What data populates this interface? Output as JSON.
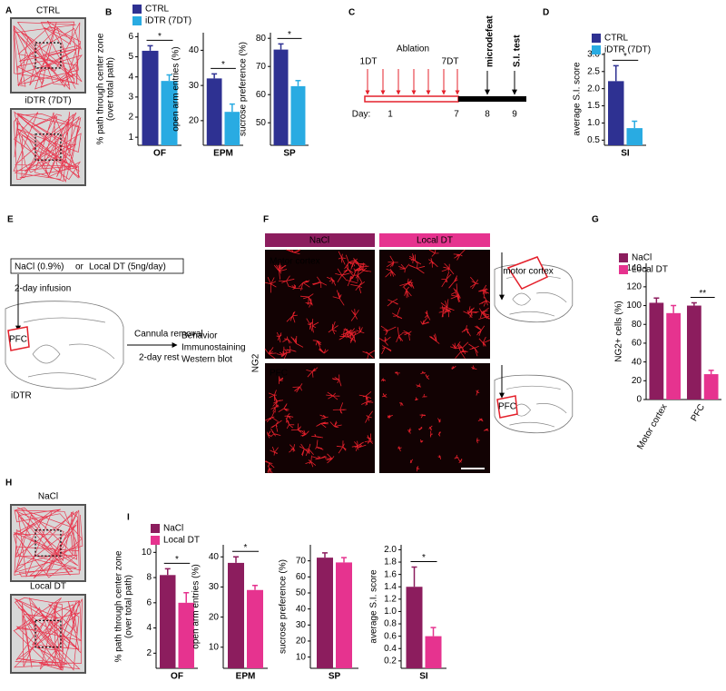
{
  "panel_letters": [
    "A",
    "B",
    "C",
    "D",
    "E",
    "F",
    "G",
    "H",
    "I"
  ],
  "panel_A": {
    "labels": [
      "CTRL",
      "iDTR (7DT)"
    ]
  },
  "panel_C": {
    "ablation": "Ablation",
    "start": "1DT",
    "end": "7DT",
    "microdefeat": "microdefeat",
    "si_test": "S.I. test",
    "day_label": "Day:",
    "days": [
      "1",
      "7",
      "8",
      "9"
    ]
  },
  "panel_E": {
    "nacl": "NaCl (0.9%)",
    "or": "or",
    "local_dt": "Local DT (5ng/day)",
    "infusion": "2-day infusion",
    "region": "PFC",
    "removal": "Cannula removal",
    "rest": "2-day rest",
    "outcomes": [
      "Behavior",
      "Immunostaining",
      "Western blot"
    ],
    "mouse": "iDTR"
  },
  "panel_F": {
    "columns": [
      "NaCl",
      "Local DT"
    ],
    "rows": [
      "Motor cortex",
      "PFC"
    ],
    "stain": "NG2",
    "atlas_labels": [
      "motor cortex",
      "PFC"
    ]
  },
  "panel_H": {
    "labels": [
      "NaCl",
      "Local DT"
    ]
  },
  "chart_data": [
    {
      "type": "bar",
      "y_label": [
        "% path through center zone",
        "(over total path)"
      ],
      "categories": [
        "OF"
      ],
      "series": [
        {
          "name": "CTRL",
          "color": "#2e3192",
          "values": [
            5.3
          ],
          "errors": [
            0.25
          ]
        },
        {
          "name": "iDTR (7DT)",
          "color": "#29abe2",
          "values": [
            3.8
          ],
          "errors": [
            0.3
          ]
        }
      ],
      "ylim": [
        0.6,
        6.2
      ],
      "yticks": [
        1,
        2,
        3,
        4,
        5,
        6
      ],
      "significance": [
        "*"
      ]
    },
    {
      "type": "bar",
      "y_label": [
        "open arm entries (%)"
      ],
      "categories": [
        "EPM"
      ],
      "series": [
        {
          "color": "#2e3192",
          "values": [
            32
          ],
          "errors": [
            1.3
          ]
        },
        {
          "color": "#29abe2",
          "values": [
            22.5
          ],
          "errors": [
            2.2
          ]
        }
      ],
      "ylim": [
        13,
        45
      ],
      "yticks": [
        20,
        30,
        40
      ],
      "significance": [
        "*"
      ]
    },
    {
      "type": "bar",
      "y_label": [
        "sucrose preference (%)"
      ],
      "categories": [
        "SP"
      ],
      "series": [
        {
          "color": "#2e3192",
          "values": [
            76
          ],
          "errors": [
            2
          ]
        },
        {
          "color": "#29abe2",
          "values": [
            63
          ],
          "errors": [
            2
          ]
        }
      ],
      "ylim": [
        42,
        82
      ],
      "yticks": [
        50,
        60,
        70,
        80
      ],
      "significance": [
        "*"
      ]
    },
    {
      "type": "bar",
      "y_label": [
        "average S.I. score"
      ],
      "categories": [
        "SI"
      ],
      "series": [
        {
          "name": "CTRL",
          "color": "#2e3192",
          "values": [
            2.22
          ],
          "errors": [
            0.45
          ]
        },
        {
          "name": "iDTR (7DT)",
          "color": "#29abe2",
          "values": [
            0.85
          ],
          "errors": [
            0.2
          ]
        }
      ],
      "ylim": [
        0.35,
        3.05
      ],
      "yticks": [
        0.5,
        {
          "value": 1,
          "label": "1.0"
        },
        1.5,
        {
          "value": 2,
          "label": "2.0"
        },
        2.5,
        {
          "value": 3,
          "label": "3.0"
        }
      ],
      "significance": [
        "*"
      ]
    },
    {
      "type": "bar",
      "y_label": [
        "NG2+ cells (%)"
      ],
      "categories": [
        "Motor cortex",
        "PFC"
      ],
      "series": [
        {
          "name": "NaCl",
          "color": "#8c1d5e",
          "values": [
            103,
            100
          ],
          "errors": [
            5,
            3
          ]
        },
        {
          "name": "Local DT",
          "color": "#e6338f",
          "values": [
            92,
            27
          ],
          "errors": [
            8,
            4
          ]
        }
      ],
      "ylim": [
        0,
        145
      ],
      "yticks": [
        0,
        20,
        40,
        60,
        80,
        100,
        120,
        140
      ],
      "significance": [
        null,
        "**"
      ]
    },
    {
      "type": "bar",
      "y_label": [
        "% path through center zone",
        "(over total path)"
      ],
      "categories": [
        "OF"
      ],
      "series": [
        {
          "name": "NaCl",
          "color": "#8c1d5e",
          "values": [
            8.2
          ],
          "errors": [
            0.5
          ]
        },
        {
          "name": "Local DT",
          "color": "#e6338f",
          "values": [
            6.0
          ],
          "errors": [
            0.8
          ]
        }
      ],
      "ylim": [
        0.8,
        10.6
      ],
      "yticks": [
        2,
        4,
        6,
        8,
        10
      ],
      "significance": [
        "*"
      ]
    },
    {
      "type": "bar",
      "y_label": [
        "open arm entries (%)"
      ],
      "categories": [
        "EPM"
      ],
      "series": [
        {
          "color": "#8c1d5e",
          "values": [
            38
          ],
          "errors": [
            2
          ]
        },
        {
          "color": "#e6338f",
          "values": [
            29
          ],
          "errors": [
            1.5
          ]
        }
      ],
      "ylim": [
        3,
        44
      ],
      "yticks": [
        10,
        20,
        30,
        40
      ],
      "significance": [
        "*"
      ]
    },
    {
      "type": "bar",
      "y_label": [
        "sucrose preference (%)"
      ],
      "categories": [
        "SP"
      ],
      "series": [
        {
          "color": "#8c1d5e",
          "values": [
            72
          ],
          "errors": [
            3
          ]
        },
        {
          "color": "#e6338f",
          "values": [
            69
          ],
          "errors": [
            3
          ]
        }
      ],
      "ylim": [
        3,
        80
      ],
      "yticks": [
        10,
        20,
        30,
        40,
        50,
        60,
        70
      ]
    },
    {
      "type": "bar",
      "y_label": [
        "average S.I. score"
      ],
      "categories": [
        "SI"
      ],
      "series": [
        {
          "color": "#8c1d5e",
          "values": [
            1.4
          ],
          "errors": [
            0.32
          ]
        },
        {
          "color": "#e6338f",
          "values": [
            0.6
          ],
          "errors": [
            0.14
          ]
        }
      ],
      "ylim": [
        0.08,
        2.08
      ],
      "yticks": [
        0.2,
        0.4,
        0.6,
        0.8,
        {
          "value": 1,
          "label": "1.0"
        },
        1.2,
        1.4,
        1.6,
        1.8,
        {
          "value": 2,
          "label": "2.0"
        }
      ],
      "significance": [
        "*"
      ]
    }
  ]
}
